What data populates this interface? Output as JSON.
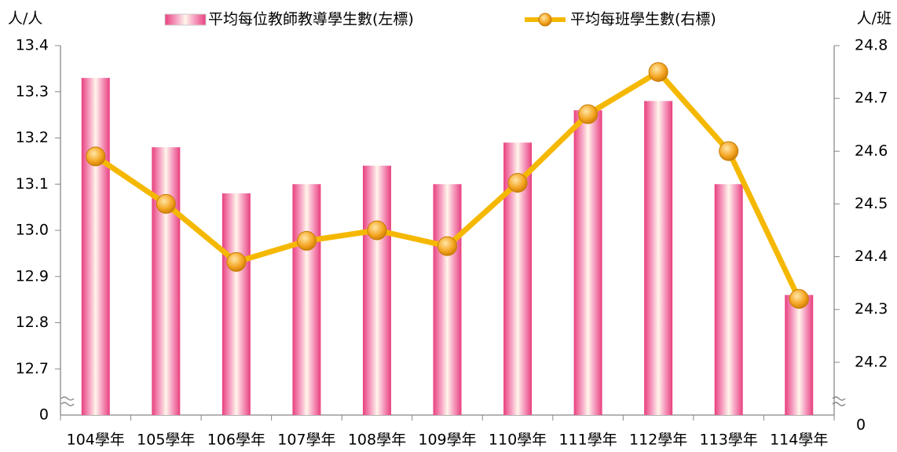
{
  "chart_data": {
    "type": "bar_line",
    "y_label": "人/人",
    "y2_label": "人/班",
    "categories": [
      "104學年",
      "105學年",
      "106學年",
      "107學年",
      "108學年",
      "109學年",
      "110學年",
      "111學年",
      "112學年",
      "113學年",
      "114學年"
    ],
    "series": [
      {
        "name": "平均每位教師教導學生數(左標)",
        "type": "bar",
        "color": "#f06a9e",
        "values": [
          13.33,
          13.18,
          13.08,
          13.1,
          13.14,
          13.1,
          13.19,
          13.26,
          13.28,
          13.1,
          12.86
        ]
      },
      {
        "name": "平均每班學生數(右標)",
        "type": "line",
        "axis": "y2",
        "color": "#f5b800",
        "marker_color": "#f5a623",
        "values": [
          24.59,
          24.5,
          24.39,
          24.43,
          24.45,
          24.42,
          24.54,
          24.67,
          24.75,
          24.6,
          24.32
        ]
      }
    ],
    "ylim": [
      12.6,
      13.4
    ],
    "yticks": [
      12.7,
      12.8,
      12.9,
      {
        "value": 13.0,
        "label": "13.0"
      },
      13.1,
      13.2,
      13.3,
      13.4
    ],
    "y_break_label": 0,
    "y2lim": [
      24.1,
      24.8
    ],
    "y2ticks": [
      24.2,
      24.3,
      24.4,
      24.5,
      24.6,
      24.7,
      24.8
    ],
    "y2_break_label": 0,
    "legend": "top"
  }
}
